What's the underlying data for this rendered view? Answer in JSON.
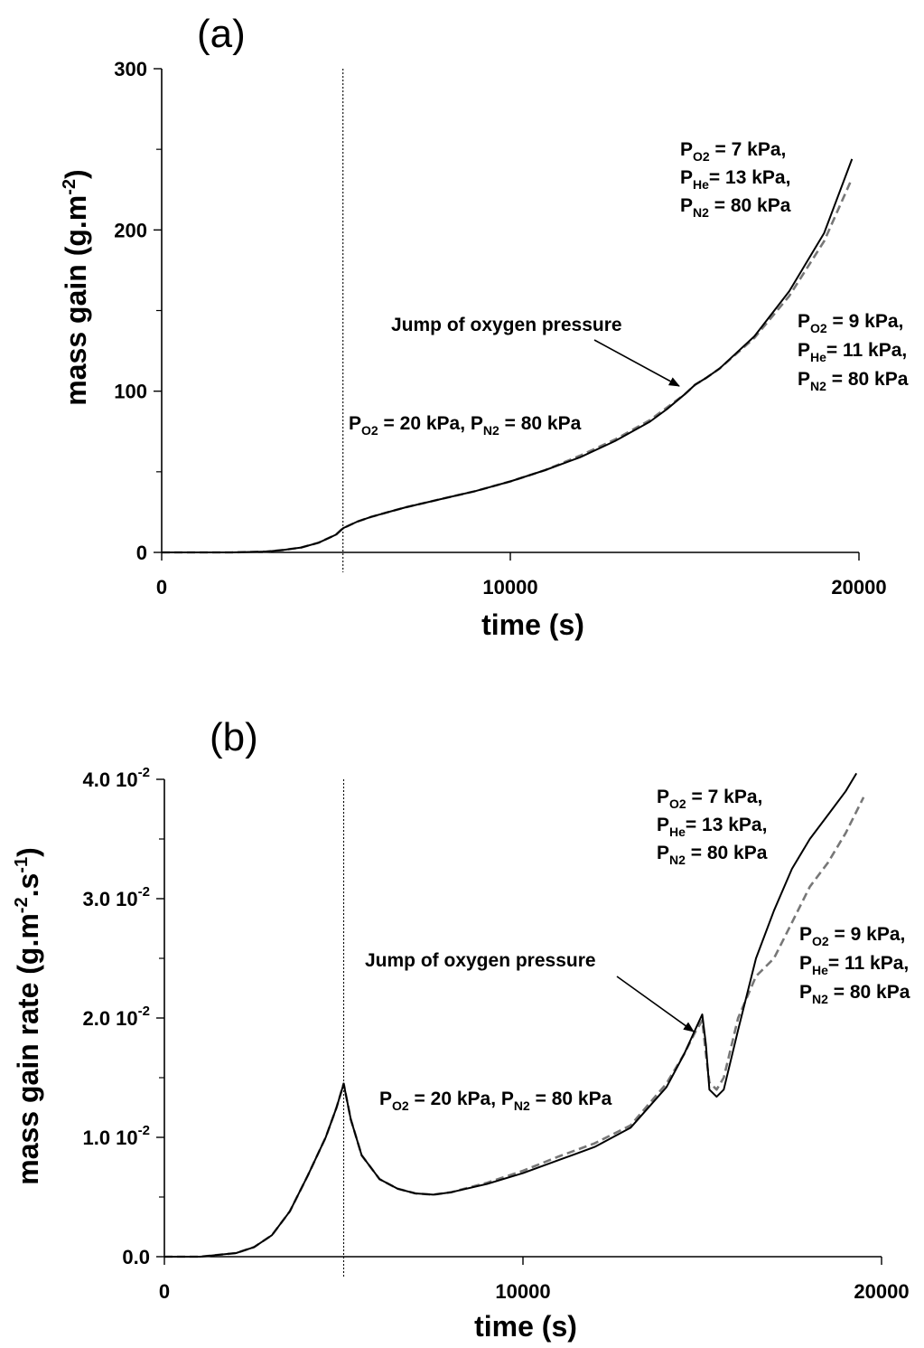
{
  "chart_data": [
    {
      "type": "line",
      "panel_label": "(a)",
      "xlabel": "time (s)",
      "ylabel": "mass gain (g.m",
      "ylabel_sup": "-2",
      "ylabel_end": ")",
      "xlim": [
        0,
        20000
      ],
      "ylim": [
        0,
        300
      ],
      "xticks": [
        "0",
        "10000",
        "20000"
      ],
      "yticks": [
        "0",
        "100",
        "200",
        "300"
      ],
      "xtick_values": [
        0,
        10000,
        20000
      ],
      "ytick_values": [
        0,
        100,
        200,
        300
      ],
      "vline_x": 5200,
      "series": [
        {
          "style": "solid",
          "color": "#000000",
          "x": [
            0,
            1000,
            2000,
            3000,
            3500,
            4000,
            4500,
            5000,
            5200,
            5600,
            6000,
            6500,
            7000,
            8000,
            9000,
            10000,
            11000,
            12000,
            13000,
            14000,
            14500,
            15000,
            15300,
            15600,
            16000,
            17000,
            18000,
            19000,
            19800
          ],
          "y": [
            0,
            0,
            0,
            0.5,
            1.5,
            3,
            6,
            11,
            15,
            19,
            22,
            25,
            28,
            33,
            38,
            44,
            51,
            59,
            69,
            81,
            89,
            98,
            104,
            108,
            114,
            134,
            162,
            198,
            244
          ]
        },
        {
          "style": "dashed",
          "color": "#777777",
          "x": [
            0,
            1000,
            2000,
            3000,
            3500,
            4000,
            4500,
            5000,
            5200,
            5600,
            6000,
            6500,
            7000,
            8000,
            9000,
            10000,
            11000,
            12000,
            13000,
            14000,
            14500,
            15000,
            15300,
            15600,
            16000,
            17000,
            18000,
            19000,
            19800
          ],
          "y": [
            0,
            0,
            0,
            0.5,
            1.5,
            3,
            6,
            11,
            15,
            19,
            22,
            25,
            28,
            33,
            38,
            44,
            51,
            60,
            70,
            82,
            90,
            98,
            104,
            108,
            114,
            133,
            159,
            193,
            232
          ]
        }
      ],
      "annotations": [
        {
          "id": "a-base",
          "parts": [
            [
              "P"
            ],
            [
              "O2",
              "sub"
            ],
            [
              " = 20 kPa, P"
            ],
            [
              "N2",
              "sub"
            ],
            [
              " = 80 kPa"
            ]
          ]
        },
        {
          "id": "a-jump",
          "parts": [
            [
              "Jump of oxygen pressure"
            ]
          ]
        },
        {
          "id": "a-o7-1",
          "parts": [
            [
              "P"
            ],
            [
              "O2",
              "sub"
            ],
            [
              " = 7 kPa,"
            ]
          ]
        },
        {
          "id": "a-o7-2",
          "parts": [
            [
              "P"
            ],
            [
              "He",
              "sub"
            ],
            [
              "= 13 kPa,"
            ]
          ]
        },
        {
          "id": "a-o7-3",
          "parts": [
            [
              "P"
            ],
            [
              "N2",
              "sub"
            ],
            [
              " = 80 kPa"
            ]
          ]
        },
        {
          "id": "a-o9-1",
          "parts": [
            [
              "P"
            ],
            [
              "O2",
              "sub"
            ],
            [
              " = 9 kPa,"
            ]
          ]
        },
        {
          "id": "a-o9-2",
          "parts": [
            [
              "P"
            ],
            [
              "He",
              "sub"
            ],
            [
              "= 11 kPa,"
            ]
          ]
        },
        {
          "id": "a-o9-3",
          "parts": [
            [
              "P"
            ],
            [
              "N2",
              "sub"
            ],
            [
              " = 80 kPa"
            ]
          ]
        }
      ]
    },
    {
      "type": "line",
      "panel_label": "(b)",
      "xlabel": "time (s)",
      "ylabel": "mass gain rate (g.m",
      "ylabel_sup": "-2",
      "ylabel_mid": ".s",
      "ylabel_sup2": "-1",
      "ylabel_end": ")",
      "xlim": [
        0,
        20000
      ],
      "ylim": [
        0,
        0.04
      ],
      "xticks": [
        "0",
        "10000",
        "20000"
      ],
      "yticks": [
        "0.0",
        "1.0 10",
        "2.0 10",
        "3.0 10",
        "4.0 10"
      ],
      "ytick_sup": "-2",
      "xtick_values": [
        0,
        10000,
        20000
      ],
      "ytick_values": [
        0,
        0.01,
        0.02,
        0.03,
        0.04
      ],
      "vline_x": 5000,
      "series": [
        {
          "style": "solid",
          "color": "#000000",
          "x": [
            0,
            1000,
            2000,
            2500,
            3000,
            3500,
            4000,
            4500,
            4800,
            5000,
            5200,
            5500,
            6000,
            6500,
            7000,
            7500,
            8000,
            9000,
            10000,
            11000,
            12000,
            13000,
            14000,
            14500,
            14800,
            15000,
            15100,
            15200,
            15400,
            15600,
            16000,
            16500,
            17000,
            17500,
            18000,
            18500,
            19000,
            19300
          ],
          "y": [
            0,
            0,
            0.0003,
            0.0008,
            0.0018,
            0.0038,
            0.0068,
            0.01,
            0.0125,
            0.0145,
            0.0115,
            0.0085,
            0.0065,
            0.0057,
            0.0053,
            0.0052,
            0.0054,
            0.0061,
            0.007,
            0.0081,
            0.0092,
            0.0108,
            0.0142,
            0.017,
            0.019,
            0.0203,
            0.0178,
            0.014,
            0.0134,
            0.014,
            0.019,
            0.025,
            0.029,
            0.0325,
            0.035,
            0.037,
            0.039,
            0.0405
          ]
        },
        {
          "style": "dashed",
          "color": "#777777",
          "x": [
            0,
            1000,
            2000,
            2500,
            3000,
            3500,
            4000,
            4500,
            4800,
            5000,
            5200,
            5500,
            6000,
            6500,
            7000,
            7500,
            8000,
            9000,
            10000,
            11000,
            12000,
            13000,
            14000,
            14500,
            14800,
            15000,
            15100,
            15200,
            15400,
            15600,
            16000,
            16500,
            17000,
            17500,
            18000,
            18500,
            19000,
            19500
          ],
          "y": [
            0,
            0,
            0.0003,
            0.0008,
            0.0018,
            0.0038,
            0.0068,
            0.01,
            0.0125,
            0.0145,
            0.0115,
            0.0085,
            0.0065,
            0.0057,
            0.0053,
            0.0052,
            0.0054,
            0.0062,
            0.0072,
            0.0084,
            0.0095,
            0.011,
            0.0145,
            0.017,
            0.0188,
            0.0198,
            0.017,
            0.0146,
            0.014,
            0.015,
            0.02,
            0.0235,
            0.025,
            0.028,
            0.031,
            0.033,
            0.0355,
            0.0385
          ]
        }
      ],
      "annotations": [
        {
          "id": "b-base",
          "parts": [
            [
              "P"
            ],
            [
              "O2",
              "sub"
            ],
            [
              " = 20 kPa, P"
            ],
            [
              "N2",
              "sub"
            ],
            [
              " = 80 kPa"
            ]
          ]
        },
        {
          "id": "b-jump",
          "parts": [
            [
              "Jump of oxygen pressure"
            ]
          ]
        },
        {
          "id": "b-o7-1",
          "parts": [
            [
              "P"
            ],
            [
              "O2",
              "sub"
            ],
            [
              " = 7 kPa,"
            ]
          ]
        },
        {
          "id": "b-o7-2",
          "parts": [
            [
              "P"
            ],
            [
              "He",
              "sub"
            ],
            [
              "= 13 kPa,"
            ]
          ]
        },
        {
          "id": "b-o7-3",
          "parts": [
            [
              "P"
            ],
            [
              "N2",
              "sub"
            ],
            [
              " = 80 kPa"
            ]
          ]
        },
        {
          "id": "b-o9-1",
          "parts": [
            [
              "P"
            ],
            [
              "O2",
              "sub"
            ],
            [
              " = 9 kPa,"
            ]
          ]
        },
        {
          "id": "b-o9-2",
          "parts": [
            [
              "P"
            ],
            [
              "He",
              "sub"
            ],
            [
              "= 11 kPa,"
            ]
          ]
        },
        {
          "id": "b-o9-3",
          "parts": [
            [
              "P"
            ],
            [
              "N2",
              "sub"
            ],
            [
              " = 80 kPa"
            ]
          ]
        }
      ]
    }
  ]
}
